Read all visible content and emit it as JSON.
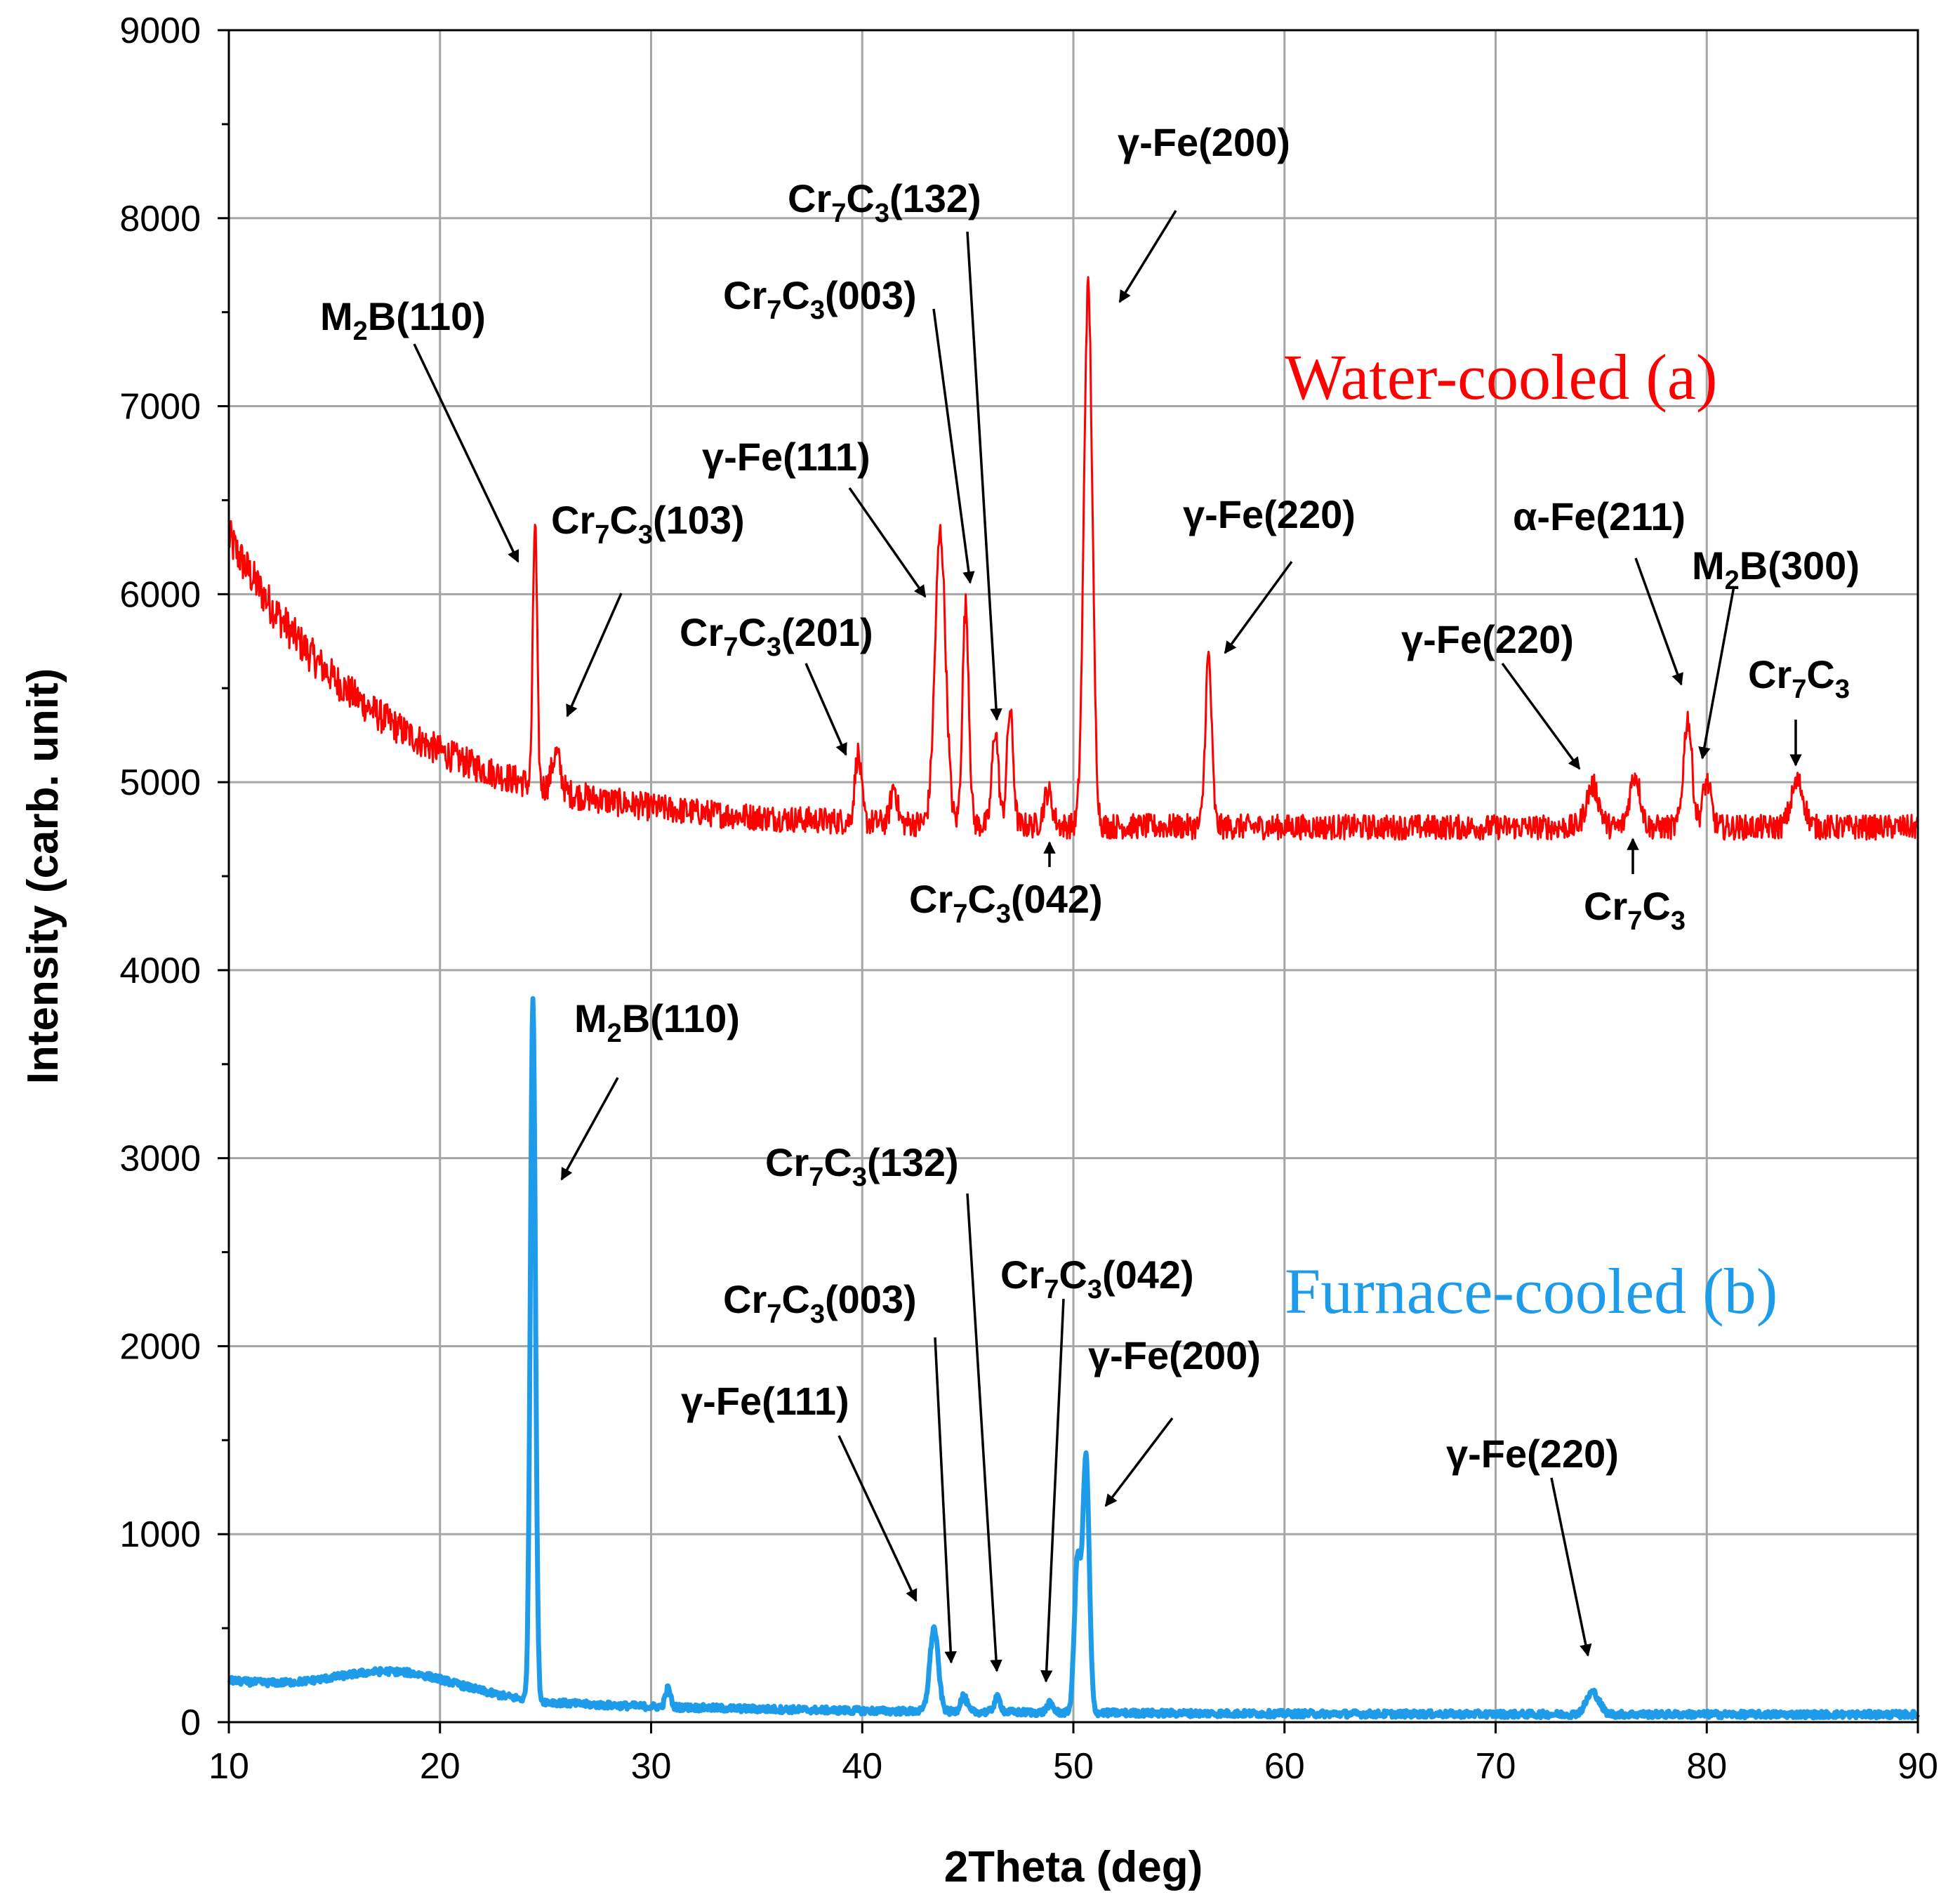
{
  "chart_data": {
    "type": "line",
    "xlabel": "2Theta (deg)",
    "ylabel": "Intensity (carb. unit)",
    "xlim": [
      10,
      90
    ],
    "ylim": [
      0,
      9000
    ],
    "xticks": [
      10,
      20,
      30,
      40,
      50,
      60,
      70,
      80,
      90
    ],
    "yticks": [
      0,
      1000,
      2000,
      3000,
      4000,
      5000,
      6000,
      7000,
      8000,
      9000
    ],
    "grid": true,
    "series": [
      {
        "name": "Water-cooled (a)",
        "color": "#ff0000",
        "baseline": "decaying",
        "base_start": 6300,
        "base_end": 4760,
        "decay": 7.5,
        "noise": 110,
        "peaks": [
          {
            "x": 24.5,
            "y": 6380,
            "w": 0.1
          },
          {
            "x": 25.5,
            "y": 5150,
            "w": 0.2
          },
          {
            "x": 39.8,
            "y": 5150,
            "w": 0.15
          },
          {
            "x": 41.5,
            "y": 4980,
            "w": 0.15
          },
          {
            "x": 43.7,
            "y": 6330,
            "w": 0.25
          },
          {
            "x": 44.9,
            "y": 5940,
            "w": 0.15
          },
          {
            "x": 46.3,
            "y": 5280,
            "w": 0.15
          },
          {
            "x": 47.0,
            "y": 5380,
            "w": 0.15
          },
          {
            "x": 48.8,
            "y": 4950,
            "w": 0.2
          },
          {
            "x": 50.7,
            "y": 7630,
            "w": 0.2
          },
          {
            "x": 56.4,
            "y": 5670,
            "w": 0.15
          },
          {
            "x": 74.6,
            "y": 4980,
            "w": 0.3
          },
          {
            "x": 76.6,
            "y": 5040,
            "w": 0.25
          },
          {
            "x": 79.1,
            "y": 5340,
            "w": 0.2
          },
          {
            "x": 80.0,
            "y": 5000,
            "w": 0.2
          },
          {
            "x": 84.3,
            "y": 5000,
            "w": 0.3
          }
        ]
      },
      {
        "name": "Furnace-cooled (b)",
        "color": "#1e9be9",
        "baseline": "flat",
        "base_start": 220,
        "base_end": 40,
        "decay": 14,
        "noise": 18,
        "peaks": [
          {
            "x": 17.5,
            "y": 270,
            "w": 3.0
          },
          {
            "x": 24.4,
            "y": 3840,
            "w": 0.12
          },
          {
            "x": 30.8,
            "y": 180,
            "w": 0.12
          },
          {
            "x": 43.4,
            "y": 500,
            "w": 0.2
          },
          {
            "x": 44.8,
            "y": 140,
            "w": 0.15
          },
          {
            "x": 46.4,
            "y": 130,
            "w": 0.15
          },
          {
            "x": 48.9,
            "y": 100,
            "w": 0.15
          },
          {
            "x": 50.2,
            "y": 870,
            "w": 0.15
          },
          {
            "x": 50.6,
            "y": 1400,
            "w": 0.15
          },
          {
            "x": 74.6,
            "y": 160,
            "w": 0.3
          }
        ]
      }
    ],
    "series_labels": [
      {
        "text": "Water-cooled (a)",
        "color": "#ff0000"
      },
      {
        "text": "Furnace-cooled (b)",
        "color": "#1e9be9"
      }
    ],
    "annotations": [
      {
        "main": "M",
        "sub": "2",
        "tail": "B(110)"
      },
      {
        "main": "Cr",
        "sub": "7",
        "main2": "C",
        "sub2": "3",
        "tail": "(103)"
      },
      {
        "main": "Cr",
        "sub": "7",
        "main2": "C",
        "sub2": "3",
        "tail": "(201)"
      },
      {
        "main": "γ-Fe(111)"
      },
      {
        "main": "Cr",
        "sub": "7",
        "main2": "C",
        "sub2": "3",
        "tail": "(003)"
      },
      {
        "main": "Cr",
        "sub": "7",
        "main2": "C",
        "sub2": "3",
        "tail": "(132)"
      },
      {
        "main": "γ-Fe(200)"
      },
      {
        "main": "Cr",
        "sub": "7",
        "main2": "C",
        "sub2": "3",
        "tail": "(042)"
      },
      {
        "main": "γ-Fe(220)"
      },
      {
        "main": "γ-Fe(220)"
      },
      {
        "main": "α-Fe(211)"
      },
      {
        "main": "M",
        "sub": "2",
        "tail": "B(300)"
      },
      {
        "main": "Cr",
        "sub": "7",
        "main2": "C",
        "sub2": "3"
      },
      {
        "main": "Cr",
        "sub": "7",
        "main2": "C",
        "sub2": "3"
      },
      {
        "main": "M",
        "sub": "2",
        "tail": "B(110)"
      },
      {
        "main": "Cr",
        "sub": "7",
        "main2": "C",
        "sub2": "3",
        "tail": "(132)"
      },
      {
        "main": "Cr",
        "sub": "7",
        "main2": "C",
        "sub2": "3",
        "tail": "(003)"
      },
      {
        "main": "Cr",
        "sub": "7",
        "main2": "C",
        "sub2": "3",
        "tail": "(042)"
      },
      {
        "main": "γ-Fe(200)"
      },
      {
        "main": "γ-Fe(111)"
      },
      {
        "main": "γ-Fe(220)"
      }
    ]
  }
}
